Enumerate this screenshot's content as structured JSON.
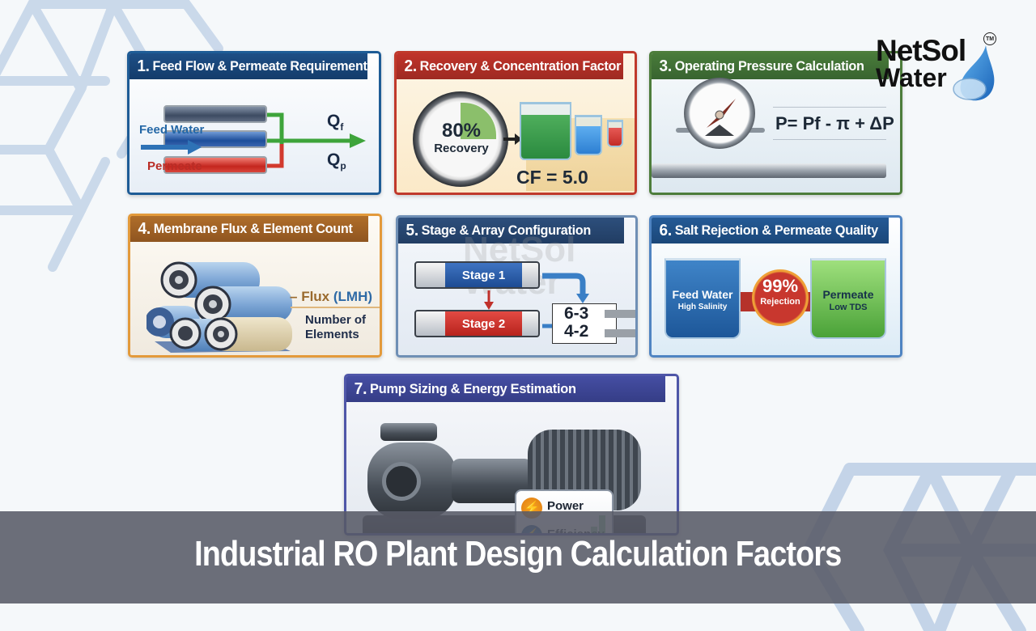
{
  "title": "Industrial RO Plant Design Calculation Factors",
  "logo": {
    "line1": "NetSol",
    "line2": "Water",
    "trademark": "TM"
  },
  "colors": {
    "card1": "#1e5c96",
    "card2": "#c0392b",
    "card3": "#4d7d3b",
    "card4": "#b06e2a",
    "card5": "#2d4f7c",
    "card6": "#245a96",
    "card7": "#454ea3",
    "banner": "#585a66"
  },
  "cards": [
    {
      "number": "1.",
      "title": "Feed Flow & Permeate Requirement",
      "labels": {
        "feed_water": "Feed Water",
        "permeate": "Permeate",
        "qf": "Q",
        "qf_sub": "f",
        "qp": "Q",
        "qp_sub": "p"
      }
    },
    {
      "number": "2.",
      "title": "Recovery & Concentration Factor",
      "labels": {
        "recovery_value": "80%",
        "recovery_label": "Recovery",
        "cf": "CF = 5.0"
      }
    },
    {
      "number": "3.",
      "title": "Operating Pressure Calculation",
      "labels": {
        "formula": "P= Pf - π + ΔP"
      }
    },
    {
      "number": "4.",
      "title": "Membrane Flux & Element Count",
      "labels": {
        "flux": "Flux",
        "flux_unit": "(LMH)",
        "elements_line1": "Number of",
        "elements_line2": "Elements"
      }
    },
    {
      "number": "5.",
      "title": "Stage & Array Configuration",
      "labels": {
        "stage1": "Stage 1",
        "stage2": "Stage 2",
        "array1": "6-3",
        "array2": "4-2"
      }
    },
    {
      "number": "6.",
      "title": "Salt Rejection & Permeate Quality",
      "labels": {
        "feed_water": "Feed Water",
        "feed_sub": "High Salinity",
        "rejection_value": "99%",
        "rejection_label": "Rejection",
        "permeate": "Permeate",
        "permeate_sub": "Low TDS"
      }
    },
    {
      "number": "7.",
      "title": "Pump Sizing & Energy Estimation",
      "labels": {
        "power": "Power",
        "efficiency": "Efficiency"
      }
    }
  ]
}
